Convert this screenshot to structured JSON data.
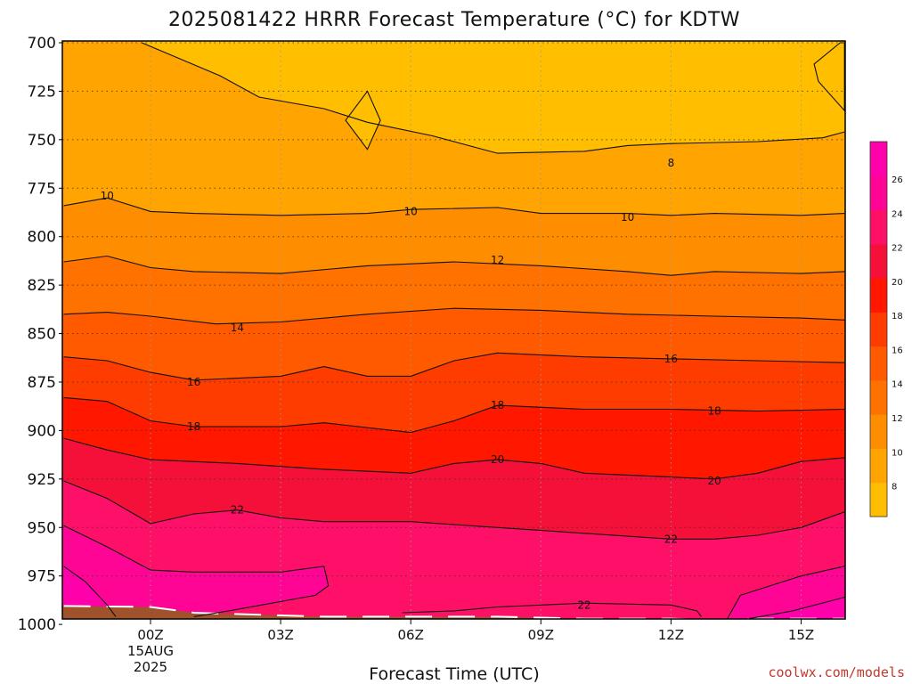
{
  "chart_data": {
    "type": "contour",
    "title": "2025081422 HRRR Forecast Temperature (°C) for KDTW",
    "xlabel": "Forecast Time (UTC)",
    "ylabel": "",
    "y_scale": "pressure (inverted)",
    "y_ticks": [
      700,
      725,
      750,
      775,
      800,
      825,
      850,
      875,
      900,
      925,
      950,
      975,
      1000
    ],
    "y_tick_labels": [
      "700",
      "725",
      "750",
      "775",
      "800",
      "825",
      "850",
      "875",
      "900",
      "925",
      "950",
      "975",
      "1000"
    ],
    "ylim": [
      1003,
      700
    ],
    "x_hours": [
      -2.0,
      16.0
    ],
    "x_ticks": [
      {
        "hour": 0,
        "label": "00Z",
        "sub1": "15AUG",
        "sub2": "2025"
      },
      {
        "hour": 3,
        "label": "03Z",
        "sub1": "",
        "sub2": ""
      },
      {
        "hour": 6,
        "label": "06Z",
        "sub1": "",
        "sub2": ""
      },
      {
        "hour": 9,
        "label": "09Z",
        "sub1": "",
        "sub2": ""
      },
      {
        "hour": 12,
        "label": "12Z",
        "sub1": "",
        "sub2": ""
      },
      {
        "hour": 15,
        "label": "15Z",
        "sub1": "",
        "sub2": ""
      }
    ],
    "grid": true,
    "colorbar": {
      "position": "right",
      "levels": [
        8,
        10,
        12,
        14,
        16,
        18,
        20,
        22,
        24,
        26
      ],
      "tick_labels": [
        "8",
        "10",
        "12",
        "14",
        "16",
        "18",
        "20",
        "22",
        "24",
        "26"
      ],
      "colors": [
        "#ffbf00",
        "#ffa400",
        "#ff8d00",
        "#ff7200",
        "#ff5a00",
        "#ff3c00",
        "#ff1700",
        "#f5103a",
        "#ff1068",
        "#ff0595",
        "#ff00aa"
      ]
    },
    "isotherms": [
      {
        "label": "8",
        "value": 8,
        "points": [
          [
            -0.2,
            700
          ],
          [
            1.6,
            717
          ],
          [
            2.5,
            728
          ],
          [
            4.0,
            734
          ],
          [
            5.0,
            741
          ],
          [
            6.5,
            748
          ],
          [
            8.0,
            757
          ],
          [
            10.0,
            756
          ],
          [
            11.0,
            753
          ],
          [
            12.0,
            752
          ],
          [
            14.0,
            751
          ],
          [
            15.5,
            749
          ],
          [
            16.0,
            746
          ]
        ]
      },
      {
        "label": "10",
        "value": 10,
        "points": [
          [
            -2.0,
            784
          ],
          [
            -1.0,
            780
          ],
          [
            0.0,
            787
          ],
          [
            1.0,
            788
          ],
          [
            3.0,
            789
          ],
          [
            5.0,
            788
          ],
          [
            6.0,
            786
          ],
          [
            8.0,
            785
          ],
          [
            9.0,
            788
          ],
          [
            11.0,
            788
          ],
          [
            12.0,
            789
          ],
          [
            13.0,
            788
          ],
          [
            15.0,
            789
          ],
          [
            16.0,
            788
          ]
        ]
      },
      {
        "label": "12",
        "value": 12,
        "points": [
          [
            -2.0,
            813
          ],
          [
            -1.0,
            810
          ],
          [
            0.0,
            816
          ],
          [
            1.0,
            818
          ],
          [
            3.0,
            819
          ],
          [
            5.0,
            815
          ],
          [
            7.0,
            813
          ],
          [
            9.0,
            815
          ],
          [
            11.0,
            818
          ],
          [
            12.0,
            820
          ],
          [
            13.0,
            818
          ],
          [
            15.0,
            819
          ],
          [
            16.0,
            818
          ]
        ]
      },
      {
        "label": "14",
        "value": 14,
        "points": [
          [
            -2.0,
            840
          ],
          [
            -1.0,
            839
          ],
          [
            0.0,
            841
          ],
          [
            1.5,
            845
          ],
          [
            3.0,
            844
          ],
          [
            5.0,
            840
          ],
          [
            7.0,
            837
          ],
          [
            9.0,
            838
          ],
          [
            11.0,
            840
          ],
          [
            13.0,
            841
          ],
          [
            15.0,
            842
          ],
          [
            16.0,
            843
          ]
        ]
      },
      {
        "label": "16",
        "value": 16,
        "points": [
          [
            -2.0,
            862
          ],
          [
            -1.0,
            864
          ],
          [
            0.0,
            870
          ],
          [
            1.0,
            874
          ],
          [
            3.0,
            872
          ],
          [
            4.0,
            867
          ],
          [
            5.0,
            872
          ],
          [
            6.0,
            872
          ],
          [
            7.0,
            864
          ],
          [
            8.0,
            860
          ],
          [
            10.0,
            862
          ],
          [
            12.0,
            863
          ],
          [
            14.0,
            864
          ],
          [
            16.0,
            865
          ]
        ]
      },
      {
        "label": "18",
        "value": 18,
        "points": [
          [
            -2.0,
            883
          ],
          [
            -1.0,
            885
          ],
          [
            0.0,
            895
          ],
          [
            1.0,
            898
          ],
          [
            3.0,
            898
          ],
          [
            4.0,
            896
          ],
          [
            6.0,
            901
          ],
          [
            7.0,
            895
          ],
          [
            8.0,
            887
          ],
          [
            10.0,
            889
          ],
          [
            12.0,
            889
          ],
          [
            14.0,
            890
          ],
          [
            16.0,
            889
          ]
        ]
      },
      {
        "label": "20",
        "value": 20,
        "points": [
          [
            -2.0,
            904
          ],
          [
            -1.0,
            910
          ],
          [
            0.0,
            915
          ],
          [
            2.0,
            917
          ],
          [
            4.0,
            920
          ],
          [
            6.0,
            922
          ],
          [
            7.0,
            917
          ],
          [
            8.0,
            915
          ],
          [
            9.0,
            917
          ],
          [
            10.0,
            922
          ],
          [
            12.0,
            924
          ],
          [
            13.0,
            925
          ],
          [
            14.0,
            922
          ],
          [
            15.0,
            916
          ],
          [
            16.0,
            914
          ]
        ]
      },
      {
        "label": "22",
        "value": 22,
        "points": [
          [
            -2.0,
            926
          ],
          [
            -1.0,
            935
          ],
          [
            0.0,
            948
          ],
          [
            1.0,
            943
          ],
          [
            2.0,
            941
          ],
          [
            3.0,
            945
          ],
          [
            4.0,
            947
          ],
          [
            6.0,
            947
          ],
          [
            8.0,
            950
          ],
          [
            10.0,
            953
          ],
          [
            12.0,
            956
          ],
          [
            13.0,
            956
          ],
          [
            14.0,
            954
          ],
          [
            15.0,
            950
          ],
          [
            16.0,
            942
          ]
        ]
      },
      {
        "label": "22",
        "value": 22,
        "points": [
          [
            5.8,
            994
          ],
          [
            7.0,
            993
          ],
          [
            8.0,
            991
          ],
          [
            10.0,
            989
          ],
          [
            12.0,
            990
          ],
          [
            12.6,
            993
          ],
          [
            12.7,
            996
          ]
        ]
      },
      {
        "label": "",
        "value": 24,
        "points": [
          [
            -2.0,
            949
          ],
          [
            -1.0,
            960
          ],
          [
            0.0,
            972
          ],
          [
            1.0,
            973
          ],
          [
            3.0,
            973
          ],
          [
            4.0,
            970
          ],
          [
            4.1,
            980
          ],
          [
            3.8,
            985
          ],
          [
            1.8,
            993
          ],
          [
            1.0,
            996
          ]
        ]
      },
      {
        "label": "",
        "value": 24,
        "points": [
          [
            13.3,
            997
          ],
          [
            13.6,
            985
          ],
          [
            15.0,
            975
          ],
          [
            16.0,
            970
          ]
        ]
      },
      {
        "label": "",
        "value": 26,
        "points": [
          [
            -2.0,
            970
          ],
          [
            -1.5,
            978
          ],
          [
            -1.0,
            990
          ],
          [
            -0.8,
            996
          ]
        ]
      },
      {
        "label": "",
        "value": 26,
        "points": [
          [
            13.8,
            997
          ],
          [
            14.8,
            993
          ],
          [
            16.0,
            986
          ]
        ]
      }
    ],
    "closed_isotherms": [
      {
        "value": 8,
        "points": [
          [
            4.5,
            740
          ],
          [
            5.0,
            725
          ],
          [
            5.3,
            740
          ],
          [
            5.0,
            755
          ]
        ]
      },
      {
        "value": 8,
        "points": [
          [
            15.3,
            711
          ],
          [
            15.9,
            700
          ],
          [
            16.0,
            700
          ],
          [
            16.0,
            735
          ],
          [
            15.4,
            720
          ]
        ]
      }
    ],
    "contour_labels": [
      {
        "text": "8",
        "hour": 12.0,
        "p": 762
      },
      {
        "text": "10",
        "hour": -1.0,
        "p": 779
      },
      {
        "text": "10",
        "hour": 6.0,
        "p": 787
      },
      {
        "text": "10",
        "hour": 11.0,
        "p": 790
      },
      {
        "text": "12",
        "hour": 8.0,
        "p": 812
      },
      {
        "text": "14",
        "hour": 2.0,
        "p": 847
      },
      {
        "text": "16",
        "hour": 1.0,
        "p": 875
      },
      {
        "text": "16",
        "hour": 12.0,
        "p": 863
      },
      {
        "text": "18",
        "hour": 1.0,
        "p": 898
      },
      {
        "text": "18",
        "hour": 8.0,
        "p": 887
      },
      {
        "text": "18",
        "hour": 13.0,
        "p": 890
      },
      {
        "text": "20",
        "hour": 8.0,
        "p": 915
      },
      {
        "text": "20",
        "hour": 13.0,
        "p": 926
      },
      {
        "text": "22",
        "hour": 2.0,
        "p": 941
      },
      {
        "text": "22",
        "hour": 12.0,
        "p": 956
      },
      {
        "text": "22",
        "hour": 10.0,
        "p": 990
      }
    ],
    "surface": [
      [
        -2.0,
        990.5
      ],
      [
        0.0,
        991
      ],
      [
        1.0,
        994
      ],
      [
        4.0,
        996
      ],
      [
        8.0,
        996
      ],
      [
        10.0,
        997
      ],
      [
        12.0,
        997
      ],
      [
        13.0,
        998
      ],
      [
        14.0,
        997
      ],
      [
        15.0,
        997
      ],
      [
        16.0,
        997
      ]
    ],
    "surface_color": "#a0522d",
    "credit": "coolwx.com/models"
  }
}
